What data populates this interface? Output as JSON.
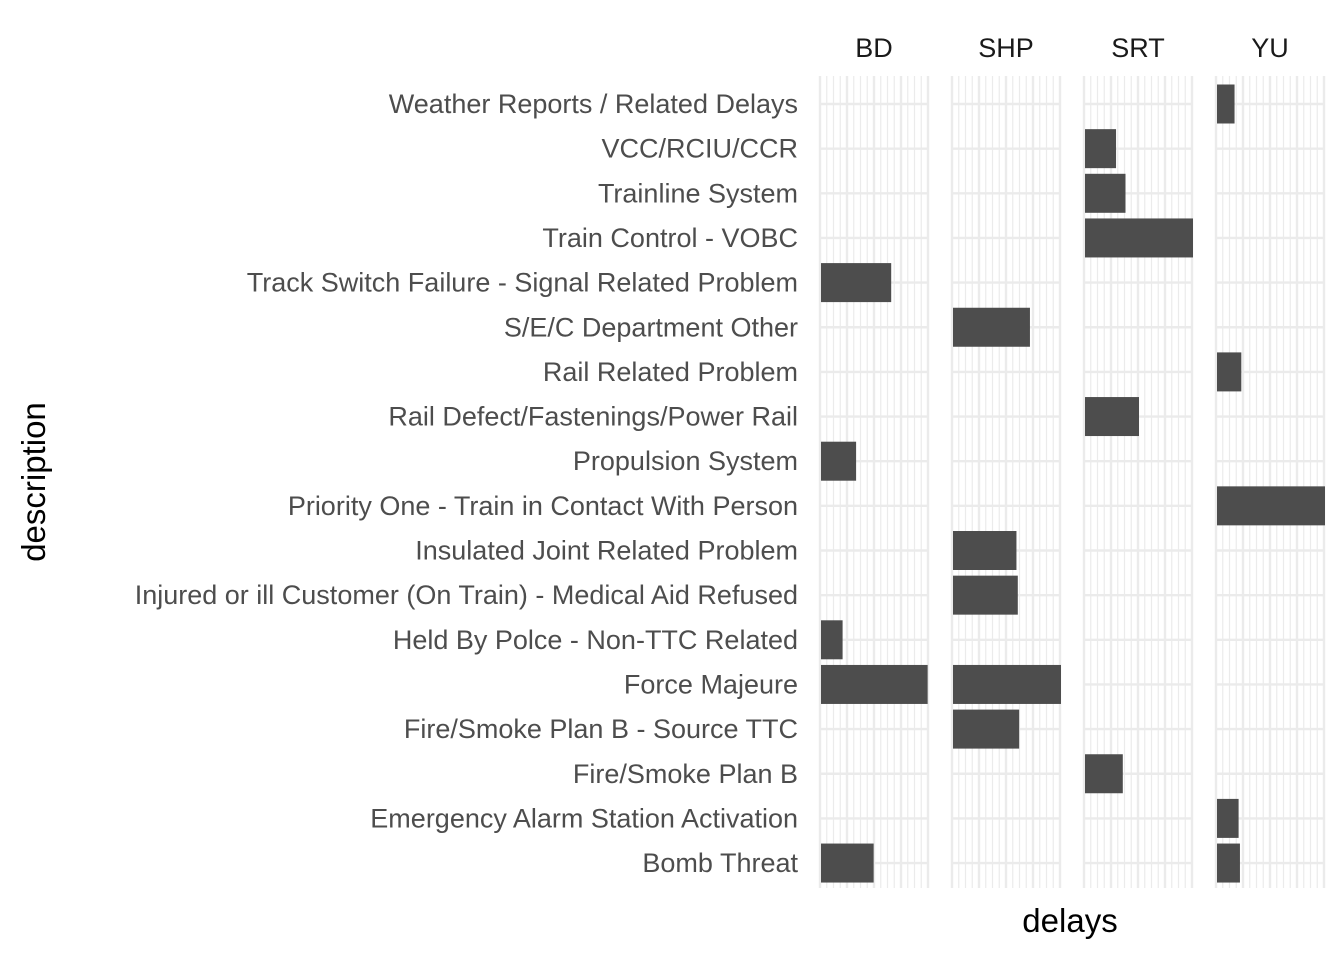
{
  "chart_data": {
    "type": "bar",
    "orientation": "horizontal",
    "facet_by": "line",
    "xlabel": "delays",
    "ylabel": "description",
    "grid": true,
    "x_tick_labels_shown": false,
    "bar_color": "#4d4d4d",
    "grid_color": "#ebebeb",
    "panels": [
      "BD",
      "SHP",
      "SRT",
      "YU"
    ],
    "categories": [
      "Weather Reports / Related Delays",
      "VCC/RCIU/CCR",
      "Trainline System",
      "Train Control - VOBC",
      "Track Switch Failure - Signal Related Problem",
      "S/E/C Department Other",
      "Rail Related Problem",
      "Rail Defect/Fastenings/Power Rail",
      "Propulsion System",
      "Priority One - Train in Contact With Person",
      "Insulated Joint Related Problem",
      "Injured or ill Customer (On Train) - Medical Aid Refused",
      "Held By Polce - Non-TTC Related",
      "Force Majeure",
      "Fire/Smoke Plan B - Source TTC",
      "Fire/Smoke Plan B",
      "Emergency Alarm Station Activation",
      "Bomb Threat"
    ],
    "xlim": [
      0,
      8
    ],
    "values": [
      {
        "description": "Weather Reports / Related Delays",
        "line": "YU",
        "delays": 1.3
      },
      {
        "description": "VCC/RCIU/CCR",
        "line": "SRT",
        "delays": 2.3
      },
      {
        "description": "Trainline System",
        "line": "SRT",
        "delays": 3.0
      },
      {
        "description": "Train Control - VOBC",
        "line": "SRT",
        "delays": 8.0
      },
      {
        "description": "Track Switch Failure - Signal Related Problem",
        "line": "BD",
        "delays": 5.2
      },
      {
        "description": "S/E/C Department Other",
        "line": "SHP",
        "delays": 5.7
      },
      {
        "description": "Rail Related Problem",
        "line": "YU",
        "delays": 1.8
      },
      {
        "description": "Rail Defect/Fastenings/Power Rail",
        "line": "SRT",
        "delays": 4.0
      },
      {
        "description": "Propulsion System",
        "line": "BD",
        "delays": 2.6
      },
      {
        "description": "Priority One - Train in Contact With Person",
        "line": "YU",
        "delays": 8.0
      },
      {
        "description": "Insulated Joint Related Problem",
        "line": "SHP",
        "delays": 4.7
      },
      {
        "description": "Injured or ill Customer (On Train) - Medical Aid Refused",
        "line": "SHP",
        "delays": 4.8
      },
      {
        "description": "Held By Polce - Non-TTC Related",
        "line": "BD",
        "delays": 1.6
      },
      {
        "description": "Force Majeure",
        "line": "BD",
        "delays": 7.9
      },
      {
        "description": "Force Majeure",
        "line": "SHP",
        "delays": 8.0
      },
      {
        "description": "Fire/Smoke Plan B - Source TTC",
        "line": "SHP",
        "delays": 4.9
      },
      {
        "description": "Fire/Smoke Plan B",
        "line": "SRT",
        "delays": 2.8
      },
      {
        "description": "Emergency Alarm Station Activation",
        "line": "YU",
        "delays": 1.6
      },
      {
        "description": "Bomb Threat",
        "line": "BD",
        "delays": 3.9
      },
      {
        "description": "Bomb Threat",
        "line": "YU",
        "delays": 1.7
      }
    ]
  }
}
